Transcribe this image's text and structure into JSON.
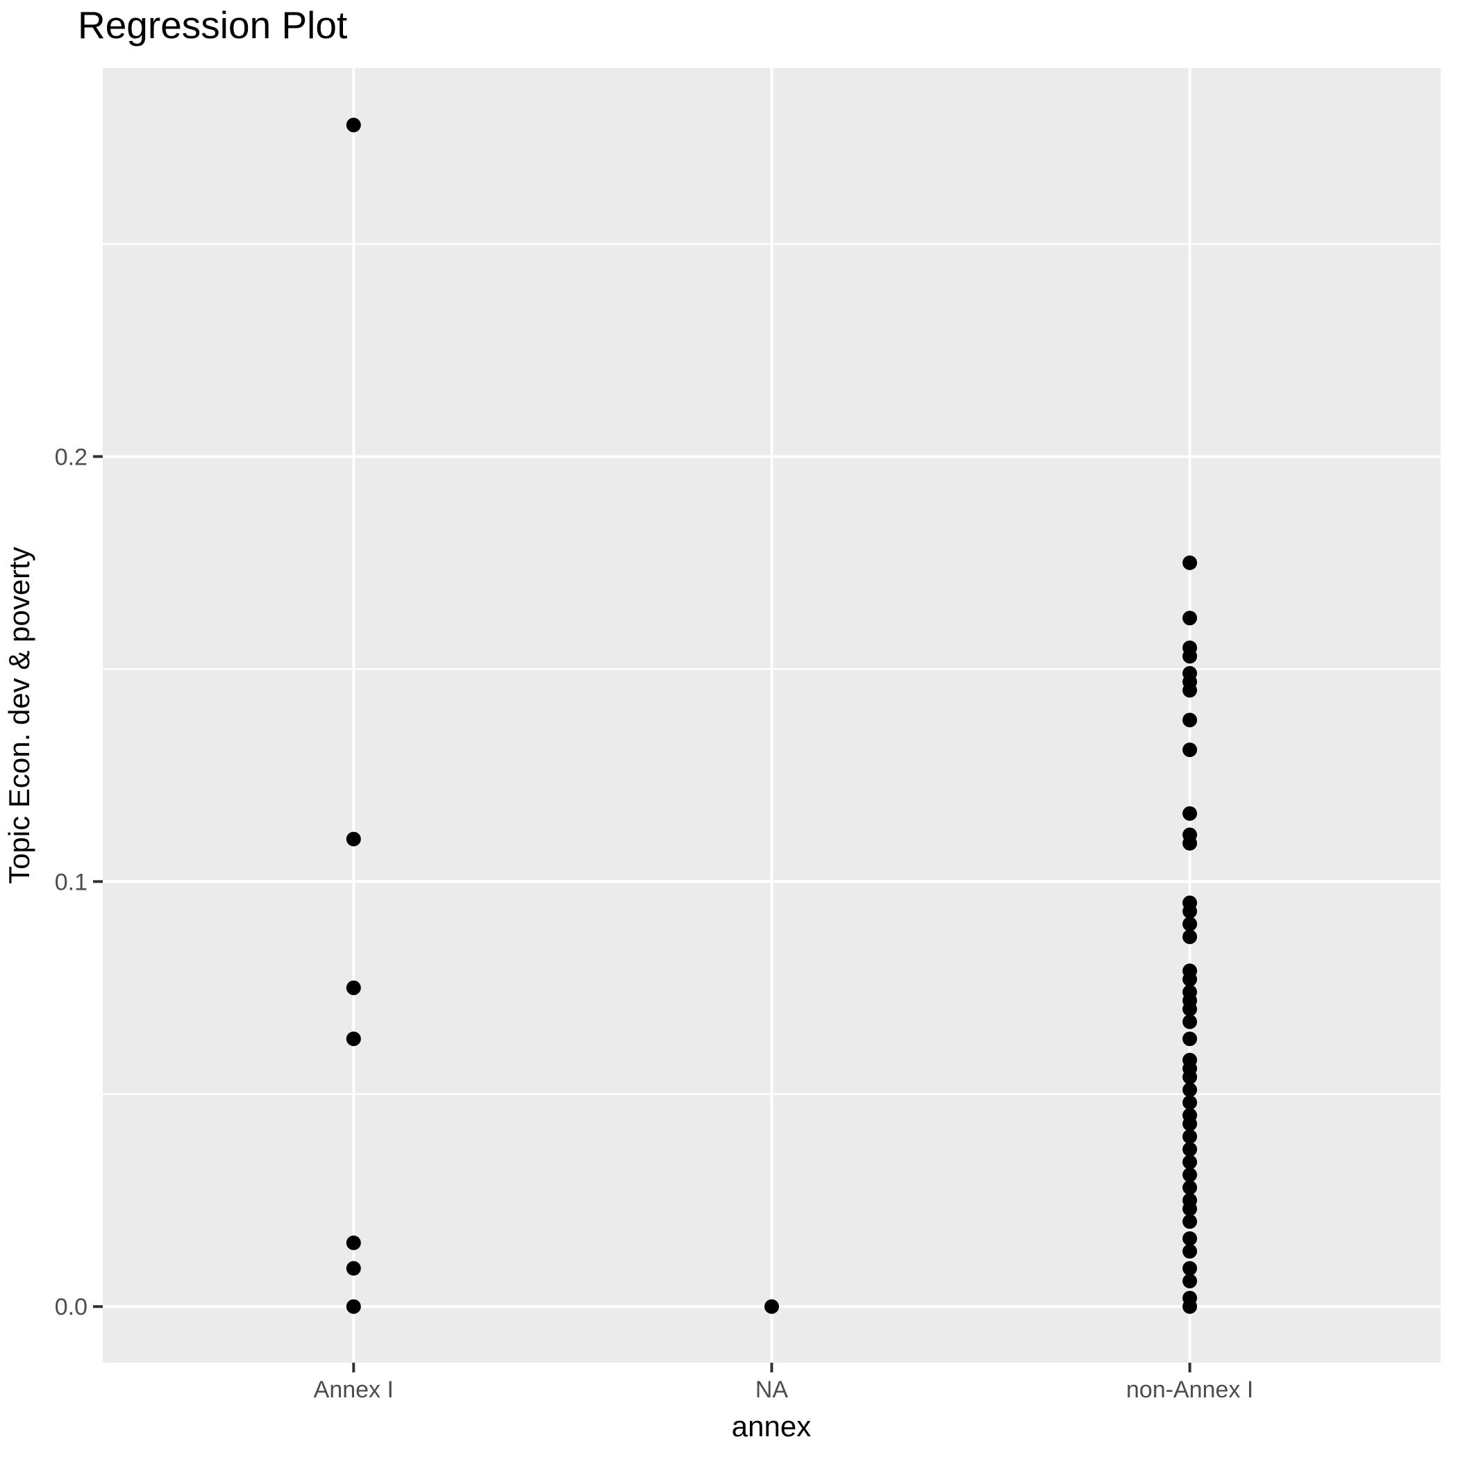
{
  "chart_data": {
    "type": "scatter",
    "title": "Regression Plot",
    "xlabel": "annex",
    "ylabel": "Topic Econ. dev & poverty",
    "categories": [
      "Annex I",
      "NA",
      "non-Annex I"
    ],
    "y_ticks": [
      0.0,
      0.1,
      0.2
    ],
    "y_tick_labels": [
      "0.0",
      "0.1",
      "0.2"
    ],
    "y_minor_ticks": [
      0.05,
      0.15,
      0.25
    ],
    "ylim": [
      -0.0132,
      0.2914
    ],
    "grid": true,
    "legend": "none",
    "series": [
      {
        "name": "Annex I",
        "values": [
          0.278,
          0.11,
          0.075,
          0.063,
          0.015,
          0.009,
          0.0
        ]
      },
      {
        "name": "NA",
        "values": [
          0.0
        ]
      },
      {
        "name": "non-Annex I",
        "values": [
          0.175,
          0.162,
          0.155,
          0.153,
          0.149,
          0.147,
          0.145,
          0.138,
          0.131,
          0.116,
          0.111,
          0.109,
          0.095,
          0.093,
          0.09,
          0.087,
          0.079,
          0.077,
          0.074,
          0.072,
          0.07,
          0.067,
          0.063,
          0.058,
          0.056,
          0.054,
          0.051,
          0.048,
          0.045,
          0.043,
          0.04,
          0.037,
          0.034,
          0.031,
          0.028,
          0.025,
          0.023,
          0.02,
          0.016,
          0.013,
          0.009,
          0.006,
          0.002,
          0.0
        ]
      }
    ],
    "colors": {
      "panel_background": "#EBEBEB",
      "gridline": "#FFFFFF",
      "point": "#000000",
      "tick_label": "#4D4D4D",
      "tick_mark": "#333333",
      "text": "#000000"
    }
  }
}
